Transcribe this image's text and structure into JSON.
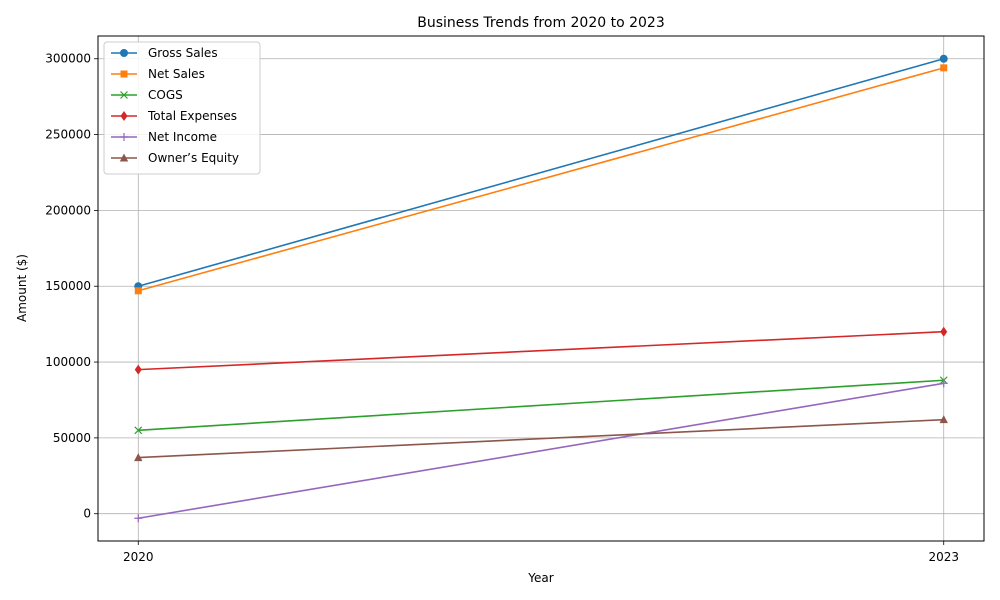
{
  "chart_data": {
    "type": "line",
    "title": "Business Trends from 2020 to 2023",
    "xlabel": "Year",
    "ylabel": "Amount ($)",
    "x": [
      2020,
      2023
    ],
    "x_tick_labels": [
      "2020",
      "2023"
    ],
    "ylim": [
      -18000,
      315000
    ],
    "y_ticks": [
      0,
      50000,
      100000,
      150000,
      200000,
      250000,
      300000
    ],
    "y_tick_labels": [
      "0",
      "50000",
      "100000",
      "150000",
      "200000",
      "250000",
      "300000"
    ],
    "grid": true,
    "legend_position": "top-left",
    "series": [
      {
        "name": "Gross Sales",
        "values": [
          150000,
          300000
        ],
        "color": "#1f77b4",
        "marker": "circle"
      },
      {
        "name": "Net Sales",
        "values": [
          147000,
          294000
        ],
        "color": "#ff7f0e",
        "marker": "square"
      },
      {
        "name": "COGS",
        "values": [
          55000,
          88000
        ],
        "color": "#2ca02c",
        "marker": "x"
      },
      {
        "name": "Total Expenses",
        "values": [
          95000,
          120000
        ],
        "color": "#d62728",
        "marker": "diamond"
      },
      {
        "name": "Net Income",
        "values": [
          -3000,
          86000
        ],
        "color": "#9467bd",
        "marker": "plus"
      },
      {
        "name": "Owner’s Equity",
        "values": [
          37000,
          62000
        ],
        "color": "#8c564b",
        "marker": "triangle"
      }
    ]
  }
}
